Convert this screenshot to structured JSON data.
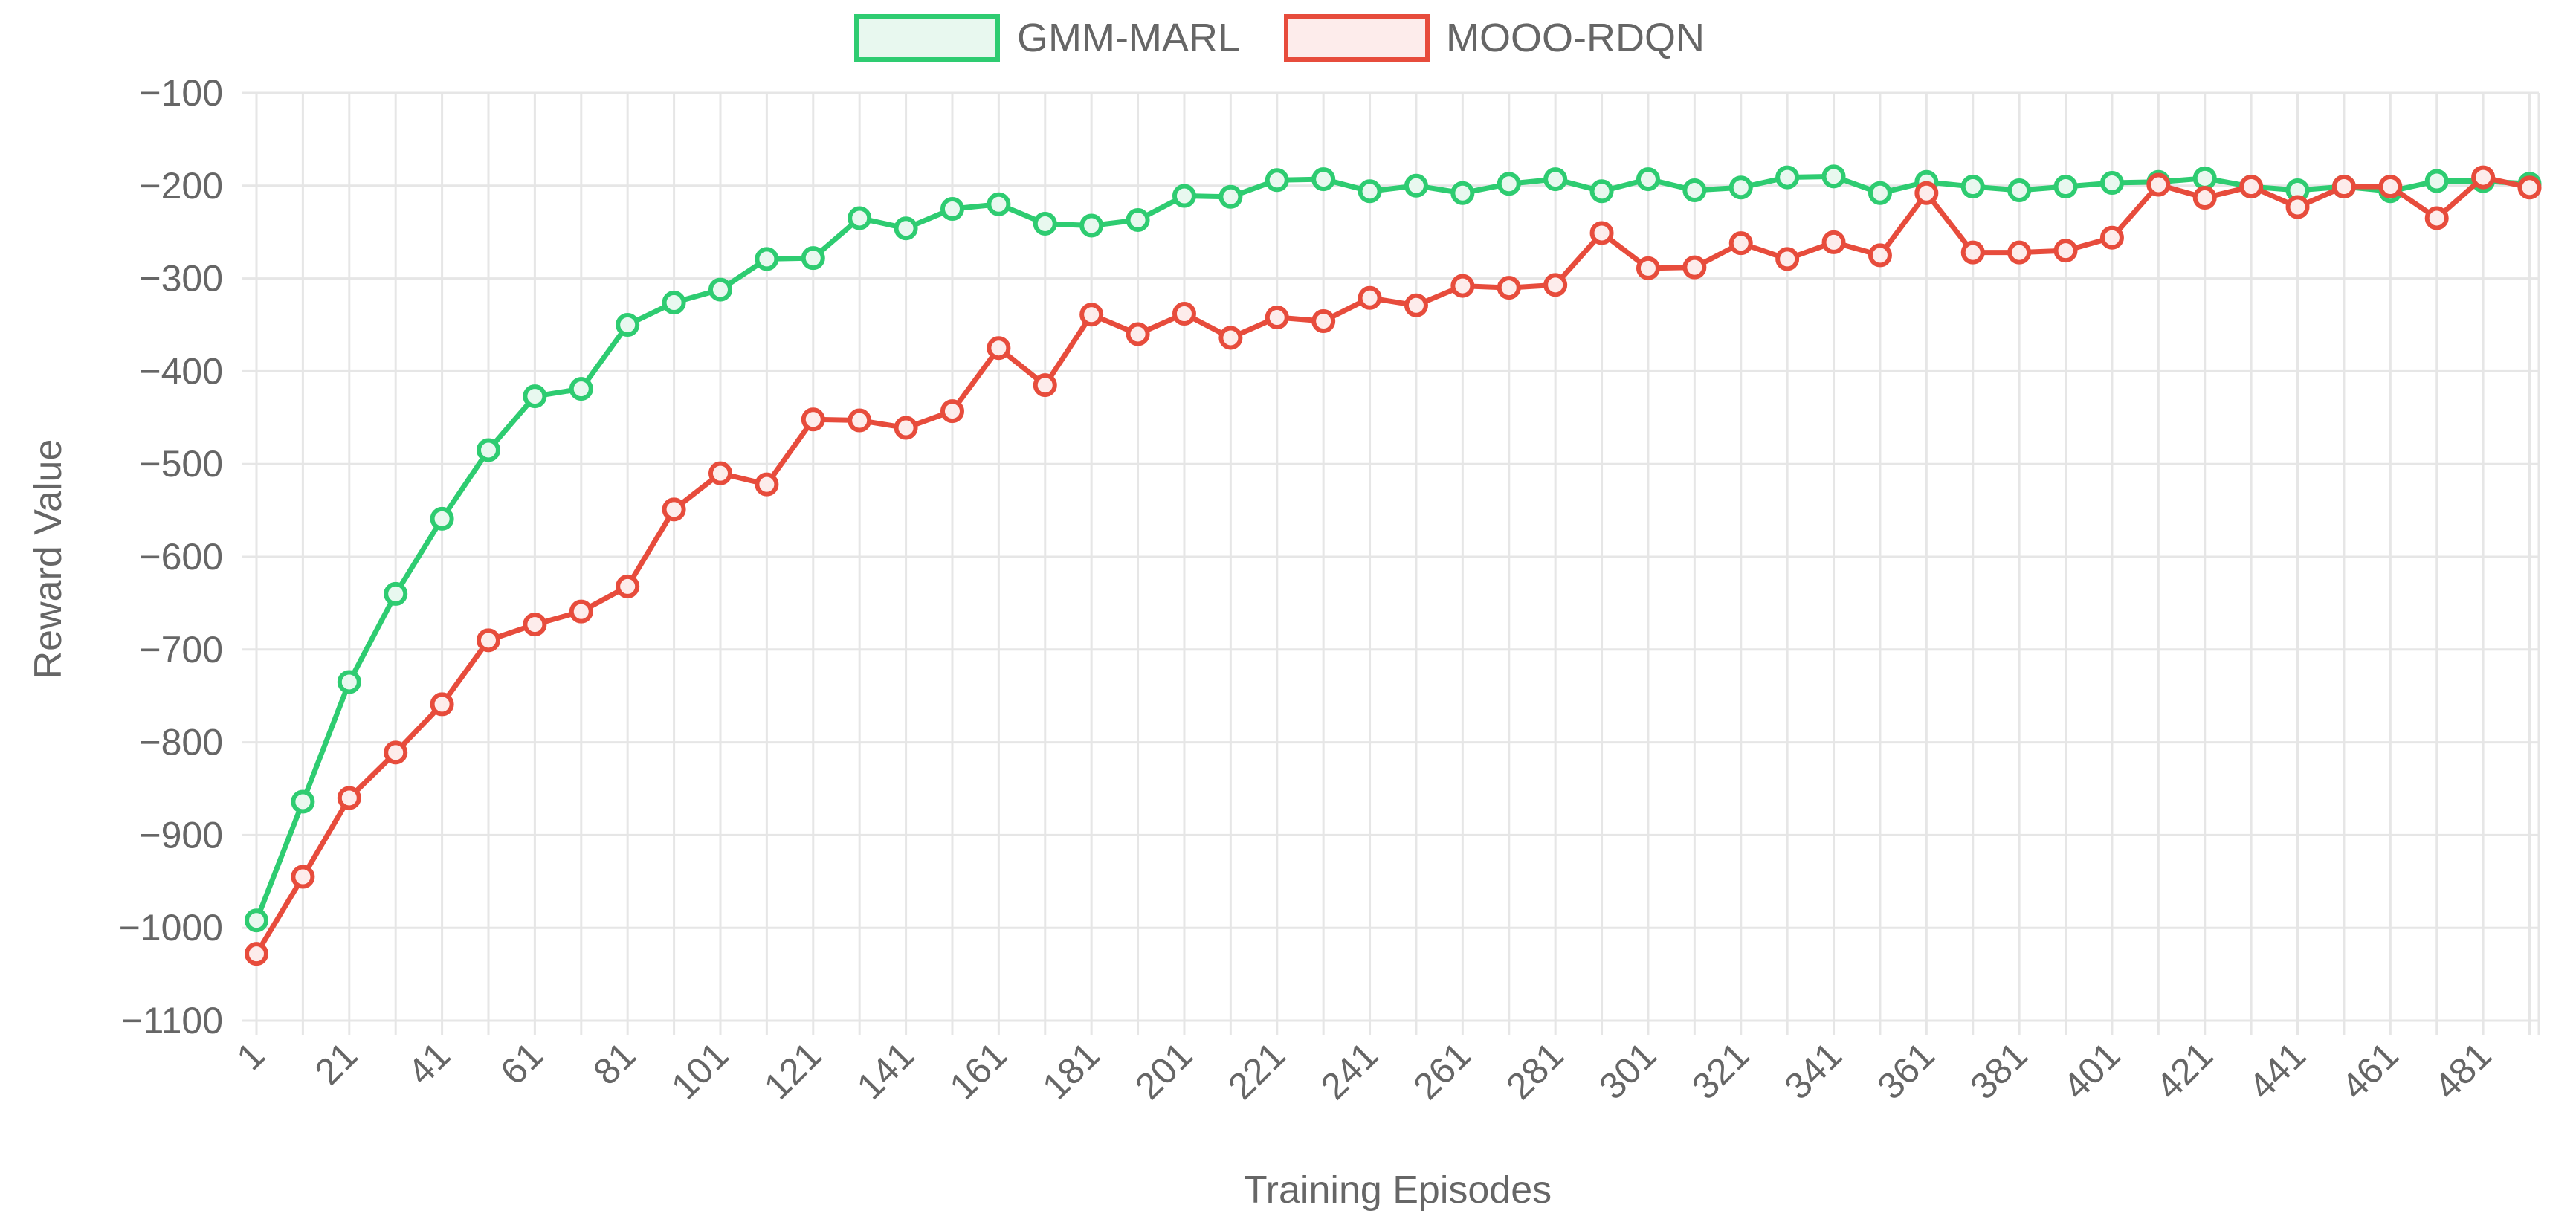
{
  "chart_data": {
    "type": "line",
    "xlabel": "Training Episodes",
    "ylabel": "Reward Value",
    "ylim": [
      -1100,
      -100
    ],
    "yticks": [
      -100,
      -200,
      -300,
      -400,
      -500,
      -600,
      -700,
      -800,
      -900,
      -1000,
      -1100
    ],
    "x_tick_labels": [
      "1",
      "21",
      "41",
      "61",
      "81",
      "101",
      "121",
      "141",
      "161",
      "181",
      "201",
      "221",
      "241",
      "261",
      "281",
      "301",
      "321",
      "341",
      "361",
      "381",
      "401",
      "421",
      "441",
      "461",
      "481"
    ],
    "x": [
      1,
      11,
      21,
      31,
      41,
      51,
      61,
      71,
      81,
      91,
      101,
      111,
      121,
      131,
      141,
      151,
      161,
      171,
      181,
      191,
      201,
      211,
      221,
      231,
      241,
      251,
      261,
      271,
      281,
      291,
      301,
      311,
      321,
      331,
      341,
      351,
      361,
      371,
      381,
      391,
      401,
      411,
      421,
      431,
      441,
      451,
      461,
      471,
      481,
      491
    ],
    "grid": true,
    "legend_position": "top-center",
    "series": [
      {
        "name": "GMM-MARL",
        "color": "#2ecc71",
        "fill": "#e8f8ef",
        "values": [
          -992,
          -864,
          -735,
          -640,
          -559,
          -485,
          -427,
          -419,
          -350,
          -326,
          -312,
          -279,
          -278,
          -235,
          -246,
          -225,
          -220,
          -241,
          -243,
          -237,
          -211,
          -212,
          -194,
          -193,
          -206,
          -200,
          -208,
          -198,
          -193,
          -206,
          -193,
          -205,
          -202,
          -191,
          -190,
          -208,
          -196,
          -201,
          -205,
          -201,
          -197,
          -196,
          -192,
          -201,
          -205,
          -201,
          -206,
          -195,
          -195,
          -198
        ]
      },
      {
        "name": "MOOO-RDQN",
        "color": "#e74c3c",
        "fill": "#fdeceb",
        "values": [
          -1028,
          -945,
          -860,
          -811,
          -759,
          -690,
          -673,
          -659,
          -632,
          -549,
          -510,
          -522,
          -452,
          -453,
          -461,
          -443,
          -375,
          -415,
          -339,
          -360,
          -338,
          -364,
          -342,
          -346,
          -321,
          -329,
          -308,
          -310,
          -307,
          -251,
          -289,
          -288,
          -262,
          -279,
          -261,
          -275,
          -208,
          -272,
          -272,
          -270,
          -256,
          -199,
          -213,
          -201,
          -223,
          -201,
          -201,
          -235,
          -191,
          -202
        ]
      }
    ]
  }
}
